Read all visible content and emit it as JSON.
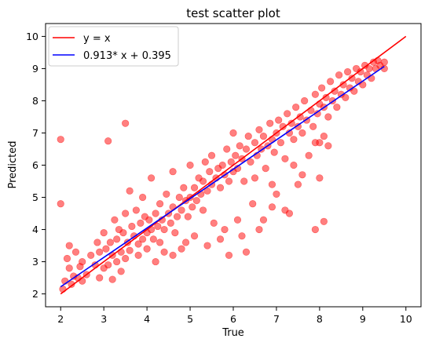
{
  "chart_data": {
    "type": "scatter",
    "title": "test scatter plot",
    "xlabel": "True",
    "ylabel": "Predicted",
    "xlim": [
      1.65,
      10.35
    ],
    "ylim": [
      1.6,
      10.4
    ],
    "xticks": [
      2,
      3,
      4,
      5,
      6,
      7,
      8,
      9,
      10
    ],
    "yticks": [
      2,
      3,
      4,
      5,
      6,
      7,
      8,
      9,
      10
    ],
    "grid": false,
    "legend_position": "top-left",
    "series": [
      {
        "name": "y = x",
        "kind": "line",
        "color": "#ff0000",
        "x": [
          2,
          10
        ],
        "y": [
          2,
          10
        ]
      },
      {
        "name": "0.913* x + 0.395",
        "kind": "line",
        "color": "#0000ff",
        "x": [
          2,
          9.5
        ],
        "y": [
          2.221,
          9.069
        ]
      },
      {
        "kind": "scatter",
        "color": "#ff0000",
        "opacity": 0.5,
        "points": [
          [
            2.0,
            6.8
          ],
          [
            2.0,
            4.8
          ],
          [
            2.05,
            2.15
          ],
          [
            2.1,
            2.4
          ],
          [
            2.15,
            3.1
          ],
          [
            2.2,
            2.8
          ],
          [
            2.2,
            3.5
          ],
          [
            2.25,
            2.3
          ],
          [
            2.3,
            2.55
          ],
          [
            2.35,
            3.3
          ],
          [
            2.4,
            2.5
          ],
          [
            2.45,
            2.85
          ],
          [
            2.5,
            2.4
          ],
          [
            2.5,
            3.0
          ],
          [
            2.6,
            2.6
          ],
          [
            2.7,
            3.2
          ],
          [
            2.8,
            2.9
          ],
          [
            2.85,
            3.6
          ],
          [
            2.9,
            2.5
          ],
          [
            2.9,
            3.3
          ],
          [
            3.0,
            2.8
          ],
          [
            3.0,
            3.9
          ],
          [
            3.05,
            3.4
          ],
          [
            3.1,
            6.75
          ],
          [
            3.1,
            2.9
          ],
          [
            3.15,
            3.6
          ],
          [
            3.2,
            2.45
          ],
          [
            3.2,
            3.2
          ],
          [
            3.25,
            4.3
          ],
          [
            3.3,
            3.0
          ],
          [
            3.3,
            3.7
          ],
          [
            3.35,
            4.0
          ],
          [
            3.4,
            3.3
          ],
          [
            3.45,
            3.9
          ],
          [
            3.5,
            7.3
          ],
          [
            3.5,
            3.1
          ],
          [
            3.5,
            4.5
          ],
          [
            3.55,
            3.6
          ],
          [
            3.6,
            5.2
          ],
          [
            3.6,
            3.35
          ],
          [
            3.65,
            4.1
          ],
          [
            3.7,
            3.8
          ],
          [
            3.75,
            4.6
          ],
          [
            3.8,
            3.2
          ],
          [
            3.8,
            3.55
          ],
          [
            3.85,
            4.2
          ],
          [
            3.9,
            3.7
          ],
          [
            3.9,
            5.0
          ],
          [
            3.95,
            4.4
          ],
          [
            4.0,
            3.4
          ],
          [
            4.0,
            3.9
          ],
          [
            4.05,
            4.3
          ],
          [
            4.1,
            4.0
          ],
          [
            4.1,
            5.6
          ],
          [
            4.15,
            3.7
          ],
          [
            4.2,
            4.5
          ],
          [
            4.25,
            4.1
          ],
          [
            4.3,
            3.6
          ],
          [
            4.3,
            4.8
          ],
          [
            4.35,
            4.3
          ],
          [
            4.4,
            3.3
          ],
          [
            4.4,
            4.0
          ],
          [
            4.45,
            5.1
          ],
          [
            4.5,
            4.5
          ],
          [
            4.55,
            4.2
          ],
          [
            4.6,
            5.8
          ],
          [
            4.6,
            4.7
          ],
          [
            4.65,
            3.9
          ],
          [
            4.7,
            4.4
          ],
          [
            4.75,
            5.0
          ],
          [
            4.8,
            4.6
          ],
          [
            4.8,
            3.4
          ],
          [
            4.85,
            5.3
          ],
          [
            4.9,
            4.9
          ],
          [
            4.95,
            4.4
          ],
          [
            5.0,
            5.0
          ],
          [
            5.0,
            6.0
          ],
          [
            5.05,
            4.7
          ],
          [
            5.1,
            5.3
          ],
          [
            5.15,
            4.9
          ],
          [
            5.2,
            5.6
          ],
          [
            5.25,
            5.1
          ],
          [
            5.3,
            4.6
          ],
          [
            5.3,
            5.5
          ],
          [
            5.35,
            6.1
          ],
          [
            5.4,
            5.2
          ],
          [
            5.45,
            5.8
          ],
          [
            5.5,
            5.4
          ],
          [
            5.5,
            6.3
          ],
          [
            5.55,
            4.2
          ],
          [
            5.6,
            5.6
          ],
          [
            5.65,
            5.9
          ],
          [
            5.7,
            5.3
          ],
          [
            5.7,
            3.7
          ],
          [
            5.75,
            6.0
          ],
          [
            5.8,
            5.7
          ],
          [
            5.85,
            6.5
          ],
          [
            5.9,
            5.5
          ],
          [
            5.9,
            3.2
          ],
          [
            5.95,
            6.1
          ],
          [
            6.0,
            5.8
          ],
          [
            6.0,
            7.0
          ],
          [
            6.05,
            6.3
          ],
          [
            6.1,
            5.9
          ],
          [
            6.15,
            6.6
          ],
          [
            6.2,
            6.2
          ],
          [
            6.2,
            3.8
          ],
          [
            6.25,
            5.5
          ],
          [
            6.3,
            6.5
          ],
          [
            6.35,
            6.9
          ],
          [
            6.4,
            6.1
          ],
          [
            6.45,
            4.8
          ],
          [
            6.5,
            6.7
          ],
          [
            6.5,
            5.6
          ],
          [
            6.55,
            6.3
          ],
          [
            6.6,
            7.1
          ],
          [
            6.65,
            6.5
          ],
          [
            6.7,
            4.3
          ],
          [
            6.7,
            6.9
          ],
          [
            6.75,
            5.9
          ],
          [
            6.8,
            6.6
          ],
          [
            6.85,
            7.3
          ],
          [
            6.9,
            6.8
          ],
          [
            6.9,
            5.4
          ],
          [
            6.95,
            6.4
          ],
          [
            7.0,
            7.0
          ],
          [
            7.0,
            5.1
          ],
          [
            7.05,
            7.4
          ],
          [
            7.1,
            6.7
          ],
          [
            7.15,
            7.2
          ],
          [
            7.2,
            6.2
          ],
          [
            7.25,
            7.6
          ],
          [
            7.3,
            7.0
          ],
          [
            7.3,
            4.5
          ],
          [
            7.35,
            7.3
          ],
          [
            7.4,
            6.8
          ],
          [
            7.45,
            7.8
          ],
          [
            7.5,
            7.2
          ],
          [
            7.5,
            5.4
          ],
          [
            7.55,
            7.5
          ],
          [
            7.6,
            7.0
          ],
          [
            7.65,
            8.0
          ],
          [
            7.7,
            7.4
          ],
          [
            7.75,
            6.3
          ],
          [
            7.8,
            7.7
          ],
          [
            7.85,
            7.2
          ],
          [
            7.9,
            8.2
          ],
          [
            7.9,
            6.7
          ],
          [
            7.95,
            7.6
          ],
          [
            8.0,
            7.9
          ],
          [
            8.0,
            5.6
          ],
          [
            8.05,
            8.4
          ],
          [
            8.1,
            7.8
          ],
          [
            8.1,
            4.25
          ],
          [
            8.15,
            8.1
          ],
          [
            8.2,
            7.5
          ],
          [
            8.25,
            8.6
          ],
          [
            8.3,
            8.0
          ],
          [
            8.35,
            8.3
          ],
          [
            8.4,
            7.8
          ],
          [
            8.45,
            8.8
          ],
          [
            8.5,
            8.2
          ],
          [
            8.55,
            8.5
          ],
          [
            8.6,
            8.1
          ],
          [
            8.65,
            8.9
          ],
          [
            8.7,
            8.4
          ],
          [
            8.75,
            8.7
          ],
          [
            8.8,
            8.3
          ],
          [
            8.85,
            9.0
          ],
          [
            8.9,
            8.6
          ],
          [
            8.95,
            8.9
          ],
          [
            9.0,
            8.5
          ],
          [
            9.05,
            9.1
          ],
          [
            9.1,
            8.8
          ],
          [
            9.15,
            9.0
          ],
          [
            9.2,
            8.7
          ],
          [
            9.25,
            9.2
          ],
          [
            9.3,
            9.0
          ],
          [
            9.35,
            9.25
          ],
          [
            9.4,
            9.1
          ],
          [
            9.5,
            9.0
          ],
          [
            9.5,
            9.2
          ],
          [
            3.4,
            2.7
          ],
          [
            4.2,
            3.0
          ],
          [
            4.6,
            3.2
          ],
          [
            5.1,
            3.8
          ],
          [
            5.8,
            4.0
          ],
          [
            6.1,
            4.3
          ],
          [
            6.6,
            4.0
          ],
          [
            7.2,
            4.6
          ],
          [
            7.6,
            5.7
          ],
          [
            7.9,
            4.0
          ],
          [
            8.0,
            6.7
          ],
          [
            8.1,
            6.9
          ],
          [
            8.2,
            6.6
          ],
          [
            7.4,
            6.0
          ],
          [
            6.9,
            4.7
          ],
          [
            6.3,
            3.3
          ],
          [
            5.4,
            3.5
          ],
          [
            4.9,
            3.6
          ]
        ]
      }
    ]
  }
}
